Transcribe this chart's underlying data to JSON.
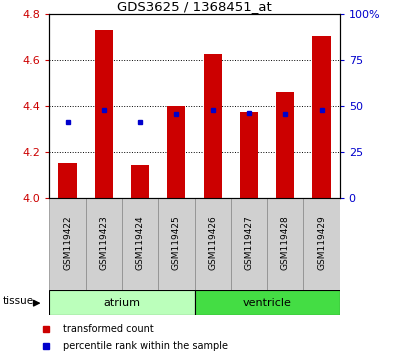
{
  "title": "GDS3625 / 1368451_at",
  "samples": [
    "GSM119422",
    "GSM119423",
    "GSM119424",
    "GSM119425",
    "GSM119426",
    "GSM119427",
    "GSM119428",
    "GSM119429"
  ],
  "red_values": [
    4.155,
    4.73,
    4.145,
    4.4,
    4.625,
    4.375,
    4.46,
    4.705
  ],
  "blue_values": [
    4.33,
    4.385,
    4.33,
    4.365,
    4.385,
    4.37,
    4.365,
    4.385
  ],
  "bar_base": 4.0,
  "ylim": [
    4.0,
    4.8
  ],
  "yticks": [
    4.0,
    4.2,
    4.4,
    4.6,
    4.8
  ],
  "right_yticks": [
    0,
    25,
    50,
    75,
    100
  ],
  "right_ylabels": [
    "0",
    "25",
    "50",
    "75",
    "100%"
  ],
  "groups": [
    {
      "label": "atrium",
      "start": 0,
      "end": 4,
      "color": "#bbffbb"
    },
    {
      "label": "ventricle",
      "start": 4,
      "end": 8,
      "color": "#44dd44"
    }
  ],
  "tissue_label": "tissue",
  "red_color": "#cc0000",
  "blue_color": "#0000cc",
  "bar_width": 0.5,
  "left_label_color": "#cc0000",
  "right_label_color": "#0000cc",
  "sample_box_color": "#d0d0d0",
  "legend_items": [
    {
      "label": "transformed count",
      "color": "#cc0000"
    },
    {
      "label": "percentile rank within the sample",
      "color": "#0000cc"
    }
  ]
}
